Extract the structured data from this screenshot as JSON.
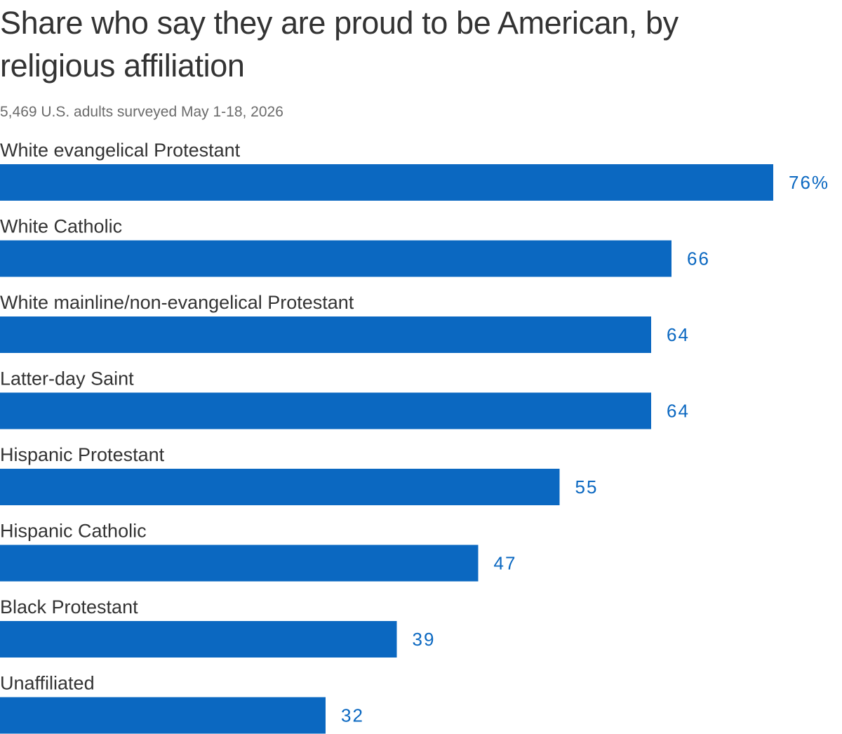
{
  "chart_data": {
    "type": "bar",
    "orientation": "horizontal",
    "title": "Share who say they are proud to be American, by religious affiliation",
    "subtitle": "5,469 U.S. adults surveyed May 1-18, 2026",
    "categories": [
      "White evangelical Protestant",
      "White Catholic",
      "White mainline/non-evangelical Protestant",
      "Latter-day Saint",
      "Hispanic Protestant",
      "Hispanic Catholic",
      "Black Protestant",
      "Unaffiliated"
    ],
    "values": [
      76,
      66,
      64,
      64,
      55,
      47,
      39,
      32
    ],
    "value_labels": [
      "76%",
      "66",
      "64",
      "64",
      "55",
      "47",
      "39",
      "32"
    ],
    "xlim": [
      0,
      76
    ],
    "grid": false,
    "legend": "none",
    "bar_color": "#0b68c1",
    "label_color": "#0b68c1"
  }
}
